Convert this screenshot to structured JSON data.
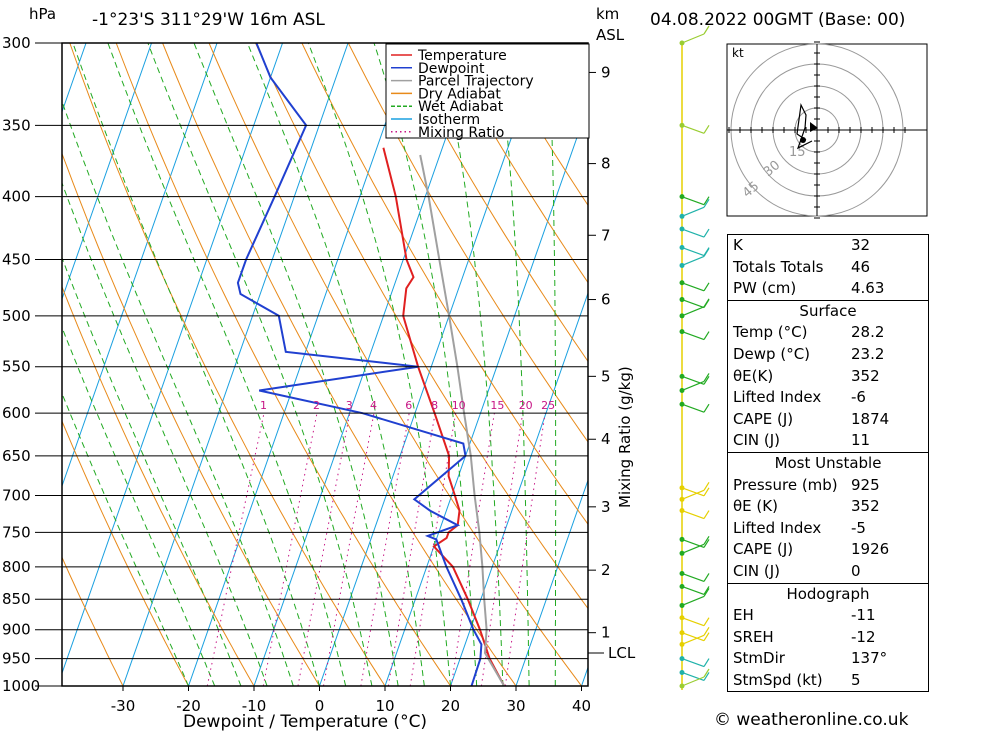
{
  "header": {
    "pressure_unit": "hPa",
    "location": "-1°23'S 311°29'W 16m ASL",
    "km_unit": "km",
    "asl_label": "ASL",
    "datetime": "04.08.2022 00GMT (Base: 00)"
  },
  "chart_data": {
    "type": "skew-t log-p",
    "xlabel": "Dewpoint / Temperature (°C)",
    "ylabel": "hPa",
    "mixing_ratio_axis_label": "Mixing Ratio (g/kg)",
    "xlim": [
      -40,
      40
    ],
    "ylim": [
      1000,
      300
    ],
    "x_ticks": [
      -30,
      -20,
      -10,
      0,
      10,
      20,
      30,
      40
    ],
    "pressure_levels": [
      300,
      350,
      400,
      450,
      500,
      550,
      600,
      650,
      700,
      750,
      800,
      850,
      900,
      950,
      1000
    ],
    "height_km_ticks": [
      {
        "label": "9",
        "p": 317
      },
      {
        "label": "8",
        "p": 376
      },
      {
        "label": "7",
        "p": 430
      },
      {
        "label": "6",
        "p": 485
      },
      {
        "label": "5",
        "p": 560
      },
      {
        "label": "4",
        "p": 630
      },
      {
        "label": "3",
        "p": 715
      },
      {
        "label": "2",
        "p": 805
      },
      {
        "label": "1",
        "p": 905
      }
    ],
    "lcl_label": "LCL",
    "lcl_pressure": 940,
    "mixing_ratio_labels": [
      "1",
      "2",
      "3",
      "4",
      "6",
      "8",
      "10",
      "15",
      "20",
      "25"
    ],
    "mixing_ratio_label_pressure": 600,
    "legend": [
      {
        "label": "Temperature",
        "color": "#e02020",
        "style": "solid"
      },
      {
        "label": "Dewpoint",
        "color": "#2040d0",
        "style": "solid"
      },
      {
        "label": "Parcel Trajectory",
        "color": "#a0a0a0",
        "style": "solid"
      },
      {
        "label": "Dry Adiabat",
        "color": "#e88a1a",
        "style": "solid"
      },
      {
        "label": "Wet Adiabat",
        "color": "#22aa22",
        "style": "dashed"
      },
      {
        "label": "Isotherm",
        "color": "#1aa0e0",
        "style": "solid"
      },
      {
        "label": "Mixing Ratio",
        "color": "#c71585",
        "style": "dotted"
      }
    ],
    "series": [
      {
        "name": "Temperature",
        "color": "#e02020",
        "points": [
          [
            1000,
            28.2
          ],
          [
            950,
            24.5
          ],
          [
            900,
            21.5
          ],
          [
            850,
            18
          ],
          [
            800,
            14
          ],
          [
            770,
            10
          ],
          [
            758,
            11.5
          ],
          [
            750,
            11.5
          ],
          [
            740,
            12.5
          ],
          [
            720,
            12
          ],
          [
            700,
            10.5
          ],
          [
            675,
            8.5
          ],
          [
            650,
            7.5
          ],
          [
            600,
            3
          ],
          [
            550,
            -2
          ],
          [
            500,
            -7
          ],
          [
            475,
            -8
          ],
          [
            465,
            -7.5
          ],
          [
            450,
            -9.5
          ],
          [
            400,
            -14.5
          ],
          [
            365,
            -19
          ]
        ]
      },
      {
        "name": "Dewpoint",
        "color": "#2040d0",
        "points": [
          [
            1000,
            23.2
          ],
          [
            950,
            23.1
          ],
          [
            925,
            22.5
          ],
          [
            900,
            20.5
          ],
          [
            850,
            17
          ],
          [
            800,
            13
          ],
          [
            760,
            10
          ],
          [
            755,
            8.5
          ],
          [
            740,
            12.5
          ],
          [
            720,
            7.5
          ],
          [
            705,
            4.5
          ],
          [
            650,
            10
          ],
          [
            635,
            9
          ],
          [
            600,
            -8
          ],
          [
            575,
            -25
          ],
          [
            550,
            -2
          ],
          [
            535,
            -23
          ],
          [
            500,
            -26
          ],
          [
            480,
            -33
          ],
          [
            470,
            -34
          ],
          [
            450,
            -34
          ],
          [
            400,
            -33
          ],
          [
            350,
            -32
          ],
          [
            320,
            -40
          ],
          [
            300,
            -44
          ]
        ]
      },
      {
        "name": "Parcel Trajectory",
        "color": "#a0a0a0",
        "points": [
          [
            1000,
            28.2
          ],
          [
            940,
            23.5
          ],
          [
            900,
            22.5
          ],
          [
            850,
            20.5
          ],
          [
            800,
            18.5
          ],
          [
            750,
            16.2
          ],
          [
            700,
            13.5
          ],
          [
            650,
            10.8
          ],
          [
            600,
            7.5
          ],
          [
            550,
            4.0
          ],
          [
            500,
            0
          ],
          [
            450,
            -4.5
          ],
          [
            400,
            -9.5
          ],
          [
            370,
            -13
          ]
        ]
      }
    ]
  },
  "hodograph": {
    "unit_label": "kt",
    "ring_labels": [
      "15",
      "30",
      "45"
    ],
    "storm_motion_dir_deg": 137,
    "storm_motion_kt": 5
  },
  "wind_barbs": {
    "note": "colors of barbs along right profile",
    "colors": [
      "#9acd32",
      "#22aa22",
      "#20b2aa",
      "#e6d000"
    ]
  },
  "indices": {
    "rows": [
      {
        "label": "K",
        "value": "32"
      },
      {
        "label": "Totals Totals",
        "value": "46"
      },
      {
        "label": "PW (cm)",
        "value": "4.63"
      }
    ]
  },
  "surface": {
    "title": "Surface",
    "rows": [
      {
        "label": "Temp (°C)",
        "value": "28.2"
      },
      {
        "label": "Dewp (°C)",
        "value": "23.2"
      },
      {
        "label": "θE(K)",
        "value": "352"
      },
      {
        "label": "Lifted Index",
        "value": "-6"
      },
      {
        "label": "CAPE (J)",
        "value": "1874"
      },
      {
        "label": "CIN (J)",
        "value": "11"
      }
    ]
  },
  "most_unstable": {
    "title": "Most Unstable",
    "rows": [
      {
        "label": "Pressure (mb)",
        "value": "925"
      },
      {
        "label": "θE (K)",
        "value": "352"
      },
      {
        "label": "Lifted Index",
        "value": "-5"
      },
      {
        "label": "CAPE (J)",
        "value": "1926"
      },
      {
        "label": "CIN (J)",
        "value": "0"
      }
    ]
  },
  "hodograph_table": {
    "title": "Hodograph",
    "rows": [
      {
        "label": "EH",
        "value": "-11"
      },
      {
        "label": "SREH",
        "value": "-12"
      },
      {
        "label": "StmDir",
        "value": "137°"
      },
      {
        "label": "StmSpd (kt)",
        "value": "5"
      }
    ]
  },
  "footer": {
    "copyright": "© weatheronline.co.uk"
  }
}
